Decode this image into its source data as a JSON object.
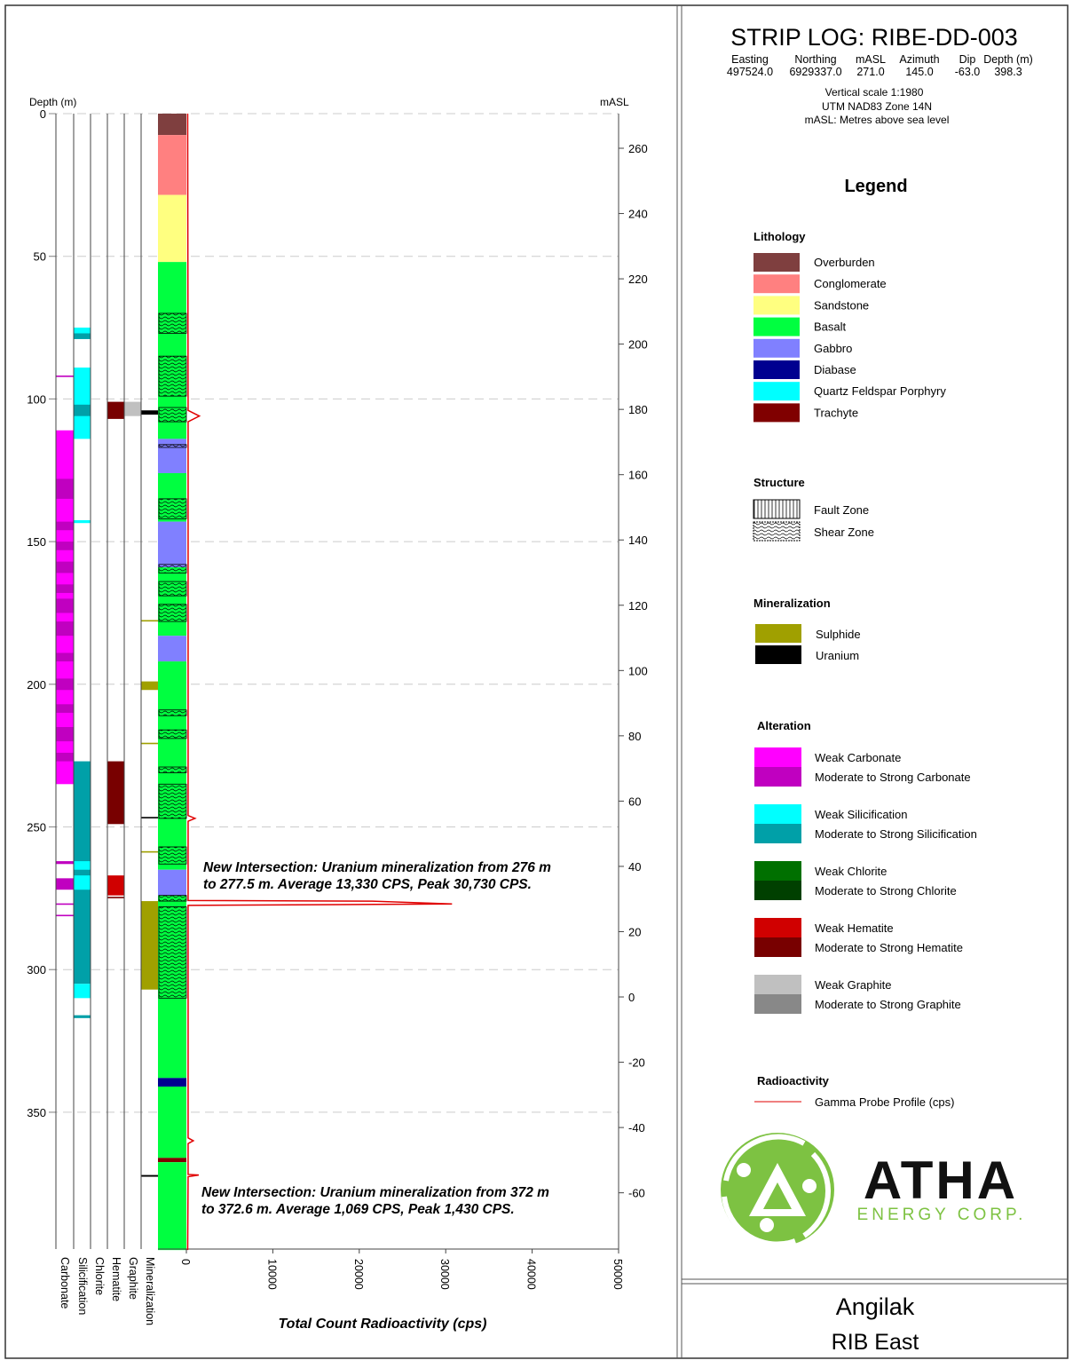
{
  "header": {
    "title": "STRIP LOG: RIBE-DD-003",
    "fields": [
      {
        "label": "Easting",
        "value": "497524.0"
      },
      {
        "label": "Northing",
        "value": "6929337.0"
      },
      {
        "label": "mASL",
        "value": "271.0"
      },
      {
        "label": "Azimuth",
        "value": "145.0"
      },
      {
        "label": "Dip",
        "value": "-63.0"
      },
      {
        "label": "Depth (m)",
        "value": "398.3"
      }
    ],
    "notes": [
      "Vertical scale 1:1980",
      "UTM NAD83 Zone 14N",
      "mASL: Metres above sea level"
    ]
  },
  "axes": {
    "depth_label": "Depth (m)",
    "masl_label": "mASL",
    "x_label": "Total Count Radioactivity (cps)",
    "depth_ticks": [
      0,
      50,
      100,
      150,
      200,
      250,
      300,
      350
    ],
    "masl_ticks": [
      260,
      240,
      220,
      200,
      180,
      160,
      140,
      120,
      100,
      80,
      60,
      40,
      20,
      0,
      -20,
      -40,
      -60
    ],
    "cps_ticks": [
      0,
      10000,
      20000,
      30000,
      40000,
      50000
    ],
    "column_labels": [
      "Carbonate",
      "Silicification",
      "Chlorite",
      "Hematite",
      "Graphite",
      "Mineralization"
    ]
  },
  "colors": {
    "Overburden": "#7f3f3f",
    "Conglomerate": "#ff8080",
    "Sandstone": "#ffff80",
    "Basalt": "#00ff40",
    "Gabbro": "#8080ff",
    "Diabase": "#000090",
    "Quartz Feldspar Porphyry": "#00ffff",
    "Trachyte": "#800000",
    "Sulphide": "#a0a000",
    "Uranium": "#000000",
    "carb_w": "#ff00ff",
    "carb_m": "#c000c0",
    "sil_w": "#00ffff",
    "sil_m": "#00a0a8",
    "chl_w": "#007000",
    "chl_m": "#004000",
    "hem_w": "#d00000",
    "hem_m": "#780000",
    "gra_w": "#c0c0c0",
    "gra_m": "#888888",
    "gamma": "#e00000"
  },
  "lithology": [
    [
      0,
      7.5,
      "Overburden"
    ],
    [
      7.5,
      28.5,
      "Conglomerate"
    ],
    [
      28.5,
      52,
      "Sandstone"
    ],
    [
      52,
      114,
      "Basalt"
    ],
    [
      114,
      126,
      "Gabbro"
    ],
    [
      126,
      143,
      "Basalt"
    ],
    [
      143,
      159,
      "Gabbro"
    ],
    [
      159,
      183,
      "Basalt"
    ],
    [
      183,
      192,
      "Gabbro"
    ],
    [
      192,
      265,
      "Basalt"
    ],
    [
      265,
      274,
      "Gabbro"
    ],
    [
      274,
      338,
      "Basalt"
    ],
    [
      338,
      341,
      "Diabase"
    ],
    [
      341,
      366,
      "Basalt"
    ],
    [
      366,
      367.5,
      "Trachyte"
    ],
    [
      367.5,
      398.3,
      "Basalt"
    ]
  ],
  "shear_zones": [
    [
      70,
      77
    ],
    [
      85,
      99
    ],
    [
      103,
      108
    ],
    [
      116,
      117
    ],
    [
      135,
      142
    ],
    [
      158,
      161
    ],
    [
      164,
      169
    ],
    [
      172,
      178
    ],
    [
      209,
      211
    ],
    [
      216,
      219
    ],
    [
      229,
      231
    ],
    [
      235,
      247
    ],
    [
      257,
      263
    ],
    [
      274,
      276
    ],
    [
      278,
      310
    ]
  ],
  "carbonate": [
    [
      111,
      235,
      "carb_w"
    ],
    [
      128,
      135,
      "carb_m"
    ],
    [
      143,
      146,
      "carb_m"
    ],
    [
      150,
      153,
      "carb_m"
    ],
    [
      157,
      161,
      "carb_m"
    ],
    [
      165,
      168,
      "carb_m"
    ],
    [
      170,
      175,
      "carb_m"
    ],
    [
      178,
      183,
      "carb_m"
    ],
    [
      189,
      192,
      "carb_m"
    ],
    [
      198,
      202,
      "carb_m"
    ],
    [
      207,
      210,
      "carb_m"
    ],
    [
      215,
      220,
      "carb_m"
    ],
    [
      224,
      227,
      "carb_m"
    ],
    [
      262,
      263,
      "carb_m"
    ],
    [
      268,
      272,
      "carb_m"
    ],
    [
      91.8,
      92.3,
      "carb_m"
    ],
    [
      276.8,
      277.3,
      "carb_m"
    ],
    [
      280.8,
      281.3,
      "carb_m"
    ]
  ],
  "silicification": [
    [
      75,
      79,
      "sil_w"
    ],
    [
      77,
      79,
      "sil_m"
    ],
    [
      89,
      114,
      "sil_w"
    ],
    [
      102,
      106,
      "sil_w"
    ],
    [
      102,
      106,
      "sil_m"
    ],
    [
      142.5,
      143.5,
      "sil_w"
    ],
    [
      227,
      305,
      "sil_m"
    ],
    [
      262,
      265,
      "sil_w"
    ],
    [
      267,
      272,
      "sil_w"
    ],
    [
      305,
      310,
      "sil_w"
    ],
    [
      316,
      317,
      "sil_m"
    ]
  ],
  "chlorite": [],
  "hematite": [
    [
      101,
      107,
      "hem_m"
    ],
    [
      227,
      249,
      "hem_m"
    ],
    [
      267,
      274,
      "hem_w"
    ],
    [
      274.5,
      275,
      "hem_m"
    ]
  ],
  "graphite": [
    [
      101,
      106,
      "gra_w"
    ]
  ],
  "mineralization": [
    [
      104,
      105.5,
      "Uranium"
    ],
    [
      177.5,
      178,
      "Sulphide"
    ],
    [
      199,
      202,
      "Sulphide"
    ],
    [
      220.5,
      221,
      "Sulphide"
    ],
    [
      246.5,
      247,
      "Uranium"
    ],
    [
      258.5,
      259,
      "Sulphide"
    ],
    [
      276,
      307,
      "Sulphide"
    ],
    [
      372,
      372.6,
      "Uranium"
    ]
  ],
  "gamma": [
    [
      0,
      150
    ],
    [
      104,
      200
    ],
    [
      106,
      1500
    ],
    [
      108,
      200
    ],
    [
      246,
      200
    ],
    [
      247,
      1000
    ],
    [
      248,
      200
    ],
    [
      275.8,
      200
    ],
    [
      276,
      21500
    ],
    [
      277,
      30730
    ],
    [
      277.5,
      200
    ],
    [
      359,
      200
    ],
    [
      360,
      800
    ],
    [
      361,
      200
    ],
    [
      371.8,
      200
    ],
    [
      372,
      1430
    ],
    [
      372.6,
      200
    ],
    [
      398.3,
      150
    ]
  ],
  "annotations": [
    {
      "line1": "New Intersection: Uranium mineralization from 276 m",
      "line2": "to 277.5 m. Average 13,330 CPS, Peak 30,730 CPS."
    },
    {
      "line1": "New Intersection: Uranium mineralization from 372 m",
      "line2": "to 372.6 m. Average 1,069 CPS, Peak 1,430 CPS."
    }
  ],
  "legend": {
    "title": "Legend",
    "lithology_title": "Lithology",
    "lithology": [
      "Overburden",
      "Conglomerate",
      "Sandstone",
      "Basalt",
      "Gabbro",
      "Diabase",
      "Quartz Feldspar Porphyry",
      "Trachyte"
    ],
    "structure_title": "Structure",
    "structure": [
      "Fault Zone",
      "Shear Zone"
    ],
    "mineralization_title": "Mineralization",
    "mineralization": [
      "Sulphide",
      "Uranium"
    ],
    "alteration_title": "Alteration",
    "alteration": [
      [
        "Weak Carbonate",
        "carb_w"
      ],
      [
        "Moderate to Strong Carbonate",
        "carb_m"
      ],
      [
        "Weak Silicification",
        "sil_w"
      ],
      [
        "Moderate to Strong Silicification",
        "sil_m"
      ],
      [
        "Weak Chlorite",
        "chl_w"
      ],
      [
        "Moderate to Strong Chlorite",
        "chl_m"
      ],
      [
        "Weak Hematite",
        "hem_w"
      ],
      [
        "Moderate to Strong Hematite",
        "hem_m"
      ],
      [
        "Weak Graphite",
        "gra_w"
      ],
      [
        "Moderate to Strong Graphite",
        "gra_m"
      ]
    ],
    "radioactivity_title": "Radioactivity",
    "radioactivity": "Gamma Probe Profile (cps)"
  },
  "logo": {
    "name": "ATHA",
    "sub": "ENERGY CORP."
  },
  "footer": {
    "project": "Angilak",
    "area": "RIB East"
  }
}
